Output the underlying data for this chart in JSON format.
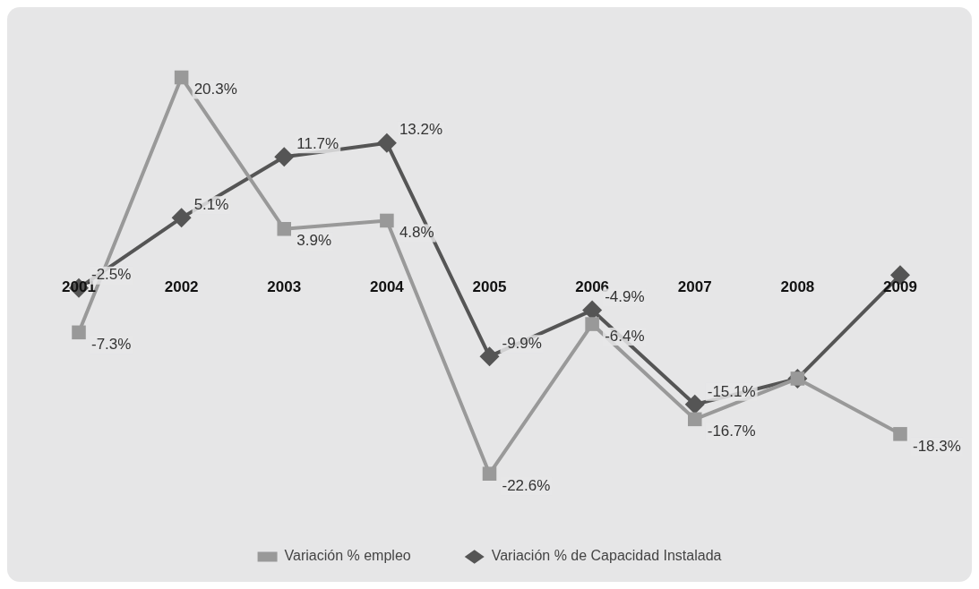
{
  "chart_data": {
    "type": "line",
    "categories": [
      "2001",
      "2002",
      "2003",
      "2004",
      "2005",
      "2006",
      "2007",
      "2008",
      "2009"
    ],
    "legend": "bottom",
    "line_style": "solid",
    "series": [
      {
        "name": "Variación % de Capacidad Instalada",
        "color": "#555555",
        "marker": "diamond",
        "values": [
          -2.5,
          5.1,
          11.7,
          13.2,
          -9.9,
          -4.9,
          -15.1,
          -12.3,
          -1.1
        ],
        "value_labels": [
          "-2.5%",
          "5.1%",
          "11.7%",
          "13.2%",
          "-9.9%",
          "-4.9%",
          "-15.1%",
          null,
          null
        ]
      },
      {
        "name": "Variación % empleo",
        "color": "#999999",
        "marker": "square",
        "values": [
          -7.3,
          20.3,
          3.9,
          4.8,
          -22.6,
          -6.4,
          -16.7,
          -12.3,
          -18.3
        ],
        "value_labels": [
          "-7.3%",
          "20.3%",
          "3.9%",
          "4.8%",
          "-22.6%",
          "-6.4%",
          "-16.7%",
          null,
          "-18.3%"
        ]
      }
    ]
  }
}
